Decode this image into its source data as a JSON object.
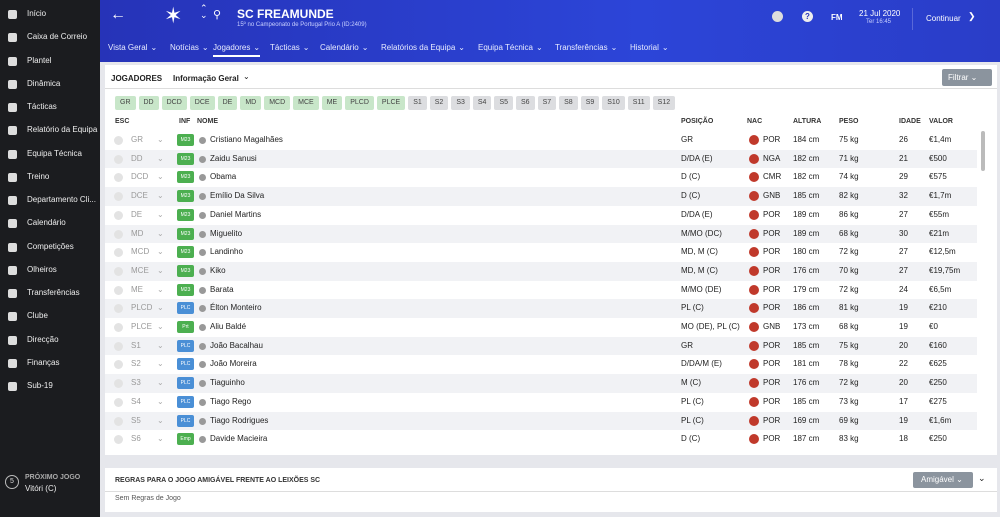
{
  "sidebar": {
    "items": [
      "Início",
      "Caixa de Correio",
      "Plantel",
      "Dinâmica",
      "Tácticas",
      "Relatório da Equipa",
      "Equipa Técnica",
      "Treino",
      "Departamento Cli...",
      "Calendário",
      "Competições",
      "Olheiros",
      "Transferências",
      "Clube",
      "Direcção",
      "Finanças",
      "Sub-19"
    ],
    "next_match": {
      "badge": "5",
      "label": "PRÓXIMO JOGO",
      "opponent": "Vitóri (C)"
    }
  },
  "header": {
    "title": "SC FREAMUNDE",
    "subtitle": "15º no Campeonato de Portugal Prio A (ID:2409)",
    "logo": "FM",
    "date": "21 Jul 2020",
    "time": "Ter 16:45",
    "continue": "Continuar",
    "tabs": [
      "Vista Geral",
      "Notícias",
      "Jogadores",
      "Tácticas",
      "Calendário",
      "Relatórios da Equipa",
      "Equipa Técnica",
      "Transferências",
      "Historial"
    ],
    "active_tab": 2
  },
  "panel": {
    "title": "JOGADORES",
    "view": "Informação Geral",
    "filter": "Filtrar",
    "chips": [
      "GR",
      "DD",
      "DCD",
      "DCE",
      "DE",
      "MD",
      "MCD",
      "MCE",
      "ME",
      "PLCD",
      "PLCE",
      "S1",
      "S2",
      "S3",
      "S4",
      "S5",
      "S6",
      "S7",
      "S8",
      "S9",
      "S10",
      "S11",
      "S12"
    ],
    "columns": [
      "ESC",
      "INF",
      "NOME",
      "POSIÇÃO",
      "NAC",
      "ALTURA",
      "PESO",
      "IDADE",
      "VALOR"
    ]
  },
  "table": {
    "rows": [
      [
        "GR",
        "M23",
        "Cristiano Magalhães",
        "GR",
        "POR",
        "184 cm",
        "75 kg",
        "26",
        "€1,4m"
      ],
      [
        "DD",
        "M23",
        "Zaidu Sanusi",
        "D/DA (E)",
        "NGA",
        "182 cm",
        "71 kg",
        "21",
        "€500"
      ],
      [
        "DCD",
        "M23",
        "Obama",
        "D (C)",
        "CMR",
        "182 cm",
        "74 kg",
        "29",
        "€575"
      ],
      [
        "DCE",
        "M23",
        "Emílio Da Silva",
        "D (C)",
        "GNB",
        "185 cm",
        "82 kg",
        "32",
        "€1,7m"
      ],
      [
        "DE",
        "M23",
        "Daniel Martins",
        "D/DA (E)",
        "POR",
        "189 cm",
        "86 kg",
        "27",
        "€55m"
      ],
      [
        "MD",
        "M23",
        "Miguelito",
        "M/MO (DC)",
        "POR",
        "189 cm",
        "68 kg",
        "30",
        "€21m"
      ],
      [
        "MCD",
        "M23",
        "Landinho",
        "MD, M (C)",
        "POR",
        "180 cm",
        "72 kg",
        "27",
        "€12,5m"
      ],
      [
        "MCE",
        "M23",
        "Kiko",
        "MD, M (C)",
        "POR",
        "176 cm",
        "70 kg",
        "27",
        "€19,75m"
      ],
      [
        "ME",
        "M23",
        "Barata",
        "M/MO (DE)",
        "POR",
        "179 cm",
        "72 kg",
        "24",
        "€6,5m"
      ],
      [
        "PLCD",
        "PLC",
        "Élton Monteiro",
        "PL (C)",
        "POR",
        "186 cm",
        "81 kg",
        "19",
        "€210"
      ],
      [
        "PLCE",
        "Prt",
        "Aliu Baldé",
        "MO (DE), PL (C)",
        "GNB",
        "173 cm",
        "68 kg",
        "19",
        "€0"
      ],
      [
        "S1",
        "PLC",
        "João Bacalhau",
        "GR",
        "POR",
        "185 cm",
        "75 kg",
        "20",
        "€160"
      ],
      [
        "S2",
        "PLC",
        "João Moreira",
        "D/DA/M (E)",
        "POR",
        "181 cm",
        "78 kg",
        "22",
        "€625"
      ],
      [
        "S3",
        "PLC",
        "Tiaguinho",
        "M (C)",
        "POR",
        "176 cm",
        "72 kg",
        "20",
        "€250"
      ],
      [
        "S4",
        "PLC",
        "Tiago Rego",
        "PL (C)",
        "POR",
        "185 cm",
        "73 kg",
        "17",
        "€275"
      ],
      [
        "S5",
        "PLC",
        "Tiago Rodrigues",
        "PL (C)",
        "POR",
        "169 cm",
        "69 kg",
        "19",
        "€1,6m"
      ],
      [
        "S6",
        "Emp",
        "Davide Macieira",
        "D (C)",
        "POR",
        "187 cm",
        "83 kg",
        "18",
        "€250"
      ]
    ]
  },
  "rules": {
    "title": "REGRAS PARA O JOGO AMIGÁVEL FRENTE AO LEIXÕES SC",
    "button": "Amigável",
    "text": "Sem Regras de Jogo"
  }
}
